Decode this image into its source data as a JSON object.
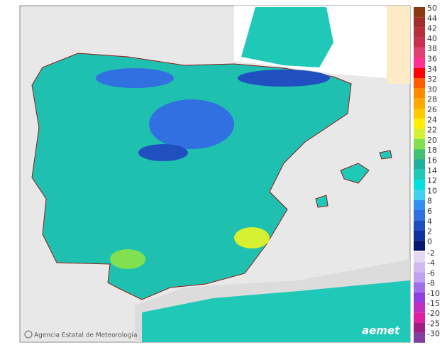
{
  "legend": {
    "levels": [
      {
        "value": 50,
        "color": "#8b3a10"
      },
      {
        "value": 44,
        "color": "#a02c2c"
      },
      {
        "value": 42,
        "color": "#b42e3e"
      },
      {
        "value": 40,
        "color": "#c83050"
      },
      {
        "value": 38,
        "color": "#e04070"
      },
      {
        "value": 36,
        "color": "#ff3090"
      },
      {
        "value": 34,
        "color": "#ff0000"
      },
      {
        "value": 32,
        "color": "#ff5a00"
      },
      {
        "value": 30,
        "color": "#ff8c00"
      },
      {
        "value": 28,
        "color": "#ffa800"
      },
      {
        "value": 26,
        "color": "#ffc800"
      },
      {
        "value": 24,
        "color": "#ffee00"
      },
      {
        "value": 22,
        "color": "#d4f030"
      },
      {
        "value": 20,
        "color": "#80e050"
      },
      {
        "value": 18,
        "color": "#40c070"
      },
      {
        "value": 16,
        "color": "#20b0a0"
      },
      {
        "value": 14,
        "color": "#20c8b8"
      },
      {
        "value": 12,
        "color": "#00e0e0"
      },
      {
        "value": 10,
        "color": "#40d0f0"
      },
      {
        "value": 8,
        "color": "#3090f0"
      },
      {
        "value": 6,
        "color": "#3070e0"
      },
      {
        "value": 4,
        "color": "#2050c0"
      },
      {
        "value": 2,
        "color": "#1030a0"
      },
      {
        "value": 0,
        "color": "#081870"
      },
      {
        "value": -2,
        "color": "#e4d8f4"
      },
      {
        "value": -4,
        "color": "#d0b8f0"
      },
      {
        "value": -6,
        "color": "#c0a0f0"
      },
      {
        "value": -8,
        "color": "#a070e8"
      },
      {
        "value": -10,
        "color": "#9040e0"
      },
      {
        "value": -15,
        "color": "#c030c0"
      },
      {
        "value": -20,
        "color": "#e020a0"
      },
      {
        "value": -25,
        "color": "#a02080"
      },
      {
        "value": -30,
        "color": "#8040a0"
      }
    ]
  },
  "credit": "Agencia Estatal de Meteorología",
  "logo": "aemet"
}
